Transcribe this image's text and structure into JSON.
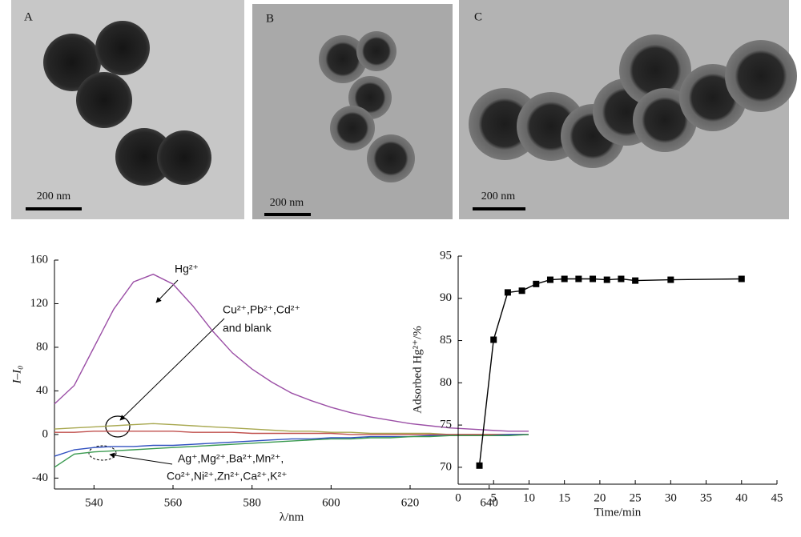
{
  "images": [
    {
      "label": "A",
      "scale_bar": "200 nm"
    },
    {
      "label": "B",
      "scale_bar": "200 nm"
    },
    {
      "label": "C",
      "scale_bar": "200 nm"
    }
  ],
  "chart_data": [
    {
      "type": "line",
      "xlabel": "λ/nm",
      "ylabel": "I–I₀",
      "x": [
        530,
        535,
        540,
        545,
        550,
        555,
        560,
        565,
        570,
        575,
        580,
        585,
        590,
        595,
        600,
        605,
        610,
        615,
        620,
        625,
        630,
        635,
        640,
        645,
        650
      ],
      "series": [
        {
          "color": "#9b4fa6",
          "values": [
            28,
            45,
            80,
            115,
            140,
            147,
            138,
            118,
            95,
            75,
            60,
            48,
            38,
            31,
            25,
            20,
            16,
            13,
            10,
            8,
            6,
            5,
            4,
            3,
            3
          ]
        },
        {
          "color": "#a8a850",
          "values": [
            5,
            6,
            7,
            8,
            9,
            10,
            9,
            8,
            7,
            6,
            5,
            4,
            3,
            3,
            2,
            2,
            1,
            1,
            1,
            1,
            0,
            0,
            0,
            0,
            0
          ]
        },
        {
          "color": "#c0504d",
          "values": [
            2,
            2,
            3,
            3,
            3,
            3,
            3,
            2,
            2,
            2,
            1,
            1,
            1,
            1,
            1,
            0,
            0,
            0,
            0,
            0,
            0,
            0,
            0,
            0,
            0
          ]
        },
        {
          "color": "#3050c0",
          "values": [
            -20,
            -14,
            -12,
            -11,
            -11,
            -10,
            -10,
            -9,
            -8,
            -7,
            -6,
            -5,
            -4,
            -4,
            -3,
            -3,
            -2,
            -2,
            -2,
            -1,
            -1,
            -1,
            -1,
            0,
            0
          ]
        },
        {
          "color": "#3a9a50",
          "values": [
            -30,
            -18,
            -16,
            -15,
            -14,
            -13,
            -12,
            -11,
            -10,
            -9,
            -8,
            -7,
            -6,
            -5,
            -4,
            -4,
            -3,
            -3,
            -2,
            -2,
            -1,
            -1,
            -1,
            -1,
            0
          ]
        }
      ],
      "xlim": [
        530,
        650
      ],
      "xticks": [
        540,
        560,
        580,
        600,
        620,
        640
      ],
      "ylim": [
        -50,
        160
      ],
      "yticks": [
        -40,
        0,
        40,
        80,
        120,
        160
      ],
      "annotations": [
        "Hg²⁺",
        "Cu²⁺,Pb²⁺,Cd²⁺",
        "and blank",
        "Ag⁺,Mg²⁺,Ba²⁺,Mn²⁺,",
        "Co²⁺,Ni²⁺,Zn²⁺,Ca²⁺,K²⁺"
      ]
    },
    {
      "type": "line",
      "xlabel": "Time/min",
      "ylabel": "Adsorbed Hg²⁺/%",
      "x": [
        3,
        5,
        7,
        9,
        11,
        13,
        15,
        17,
        19,
        21,
        23,
        25,
        30,
        40
      ],
      "series": [
        {
          "color": "#000000",
          "values": [
            70.2,
            85.1,
            90.7,
            90.9,
            91.7,
            92.2,
            92.3,
            92.3,
            92.3,
            92.2,
            92.3,
            92.1,
            92.2,
            92.3
          ]
        }
      ],
      "xlim": [
        0,
        45
      ],
      "xticks": [
        0,
        5,
        10,
        15,
        20,
        25,
        30,
        35,
        40,
        45
      ],
      "ylim": [
        68,
        95
      ],
      "yticks": [
        70,
        75,
        80,
        85,
        90,
        95
      ]
    }
  ]
}
